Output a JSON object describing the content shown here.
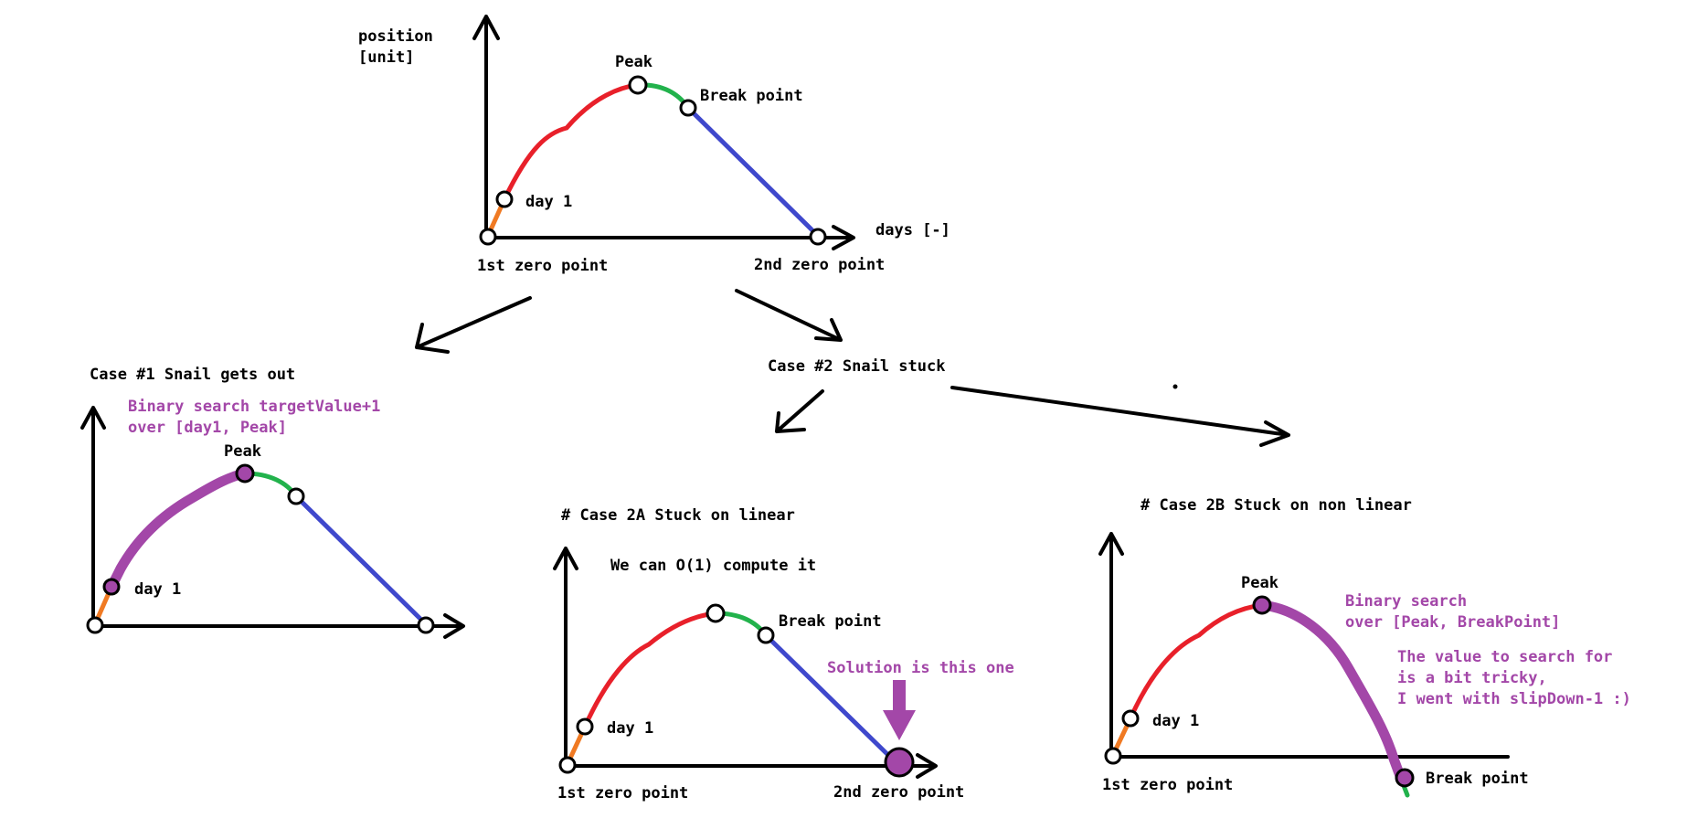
{
  "main": {
    "axis_y_label_1": "position",
    "axis_y_label_2": "[unit]",
    "axis_x_label": "days [-]",
    "peak": "Peak",
    "break_point": "Break point",
    "day1": "day 1",
    "zero1": "1st zero point",
    "zero2": "2nd zero point"
  },
  "case1": {
    "title": "Case #1 Snail gets out",
    "note_1": "Binary search targetValue+1",
    "note_2": "over [day1, Peak]",
    "peak": "Peak",
    "day1": "day 1"
  },
  "case2": {
    "title": "Case #2 Snail stuck"
  },
  "case2a": {
    "title": "# Case 2A Stuck on linear",
    "note": "We can O(1) compute it",
    "break_point": "Break point",
    "solution": "Solution is this one",
    "day1": "day 1",
    "zero1": "1st zero point",
    "zero2": "2nd zero point"
  },
  "case2b": {
    "title": "# Case 2B Stuck on non linear",
    "peak": "Peak",
    "note_1": "Binary search",
    "note_2": "over [Peak, BreakPoint]",
    "note_3": "The value to search for",
    "note_4": "is a bit tricky,",
    "note_5": "I went with slipDown-1 :)",
    "day1": "day 1",
    "zero1": "1st zero point",
    "break_point": "Break point"
  },
  "colors": {
    "orange": "#f07a23",
    "red": "#e8202a",
    "green": "#22b24c",
    "blue": "#3f48cc",
    "purple": "#a347a8"
  }
}
